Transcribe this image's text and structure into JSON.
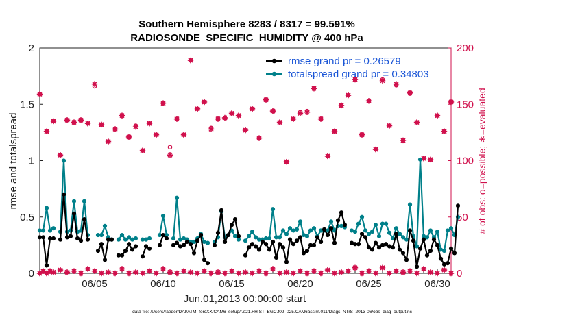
{
  "chart_data": {
    "type": "line",
    "title": "Southern Hemisphere 8283 / 8317 = 99.591%",
    "subtitle": "RADIOSONDE_SPECIFIC_HUMIDITY @ 400 hPa",
    "xlabel": "Jun.01,2013 00:00:00 start",
    "ylabel": "rmse and totalspread",
    "y2label": "# of obs: o=possible; ∗=evaluated",
    "footer": "data file: /Users/raeder/DAI/ATM_forcXX/CAM6_setup/f.e21.FHIST_BGC.f09_025.CAM6assim.011/Diags_NTrS_2013-06/obs_diag_output.nc",
    "xlim": [
      1,
      31
    ],
    "ylim": [
      0,
      2
    ],
    "y2lim": [
      0,
      200
    ],
    "x_ticks": [
      5,
      10,
      15,
      20,
      25,
      30
    ],
    "x_tick_labels": [
      "06/05",
      "06/10",
      "06/15",
      "06/20",
      "06/25",
      "06/30"
    ],
    "y_ticks": [
      "0",
      "0.5",
      "1",
      "1.5",
      "2"
    ],
    "y2_ticks": [
      "0",
      "50",
      "100",
      "150",
      "200"
    ],
    "legend_position": "top-right",
    "colors": {
      "rmse": "#000000",
      "spread": "#00808a",
      "obs": "#d0104c"
    },
    "series": [
      {
        "name": "rmse",
        "legend": "rmse grand pr = 0.26579",
        "pattern": "segments",
        "values": [
          0.32,
          0.32,
          0.07,
          0.31,
          0.31,
          null,
          0.3,
          0.7,
          0.32,
          0.33,
          0.53,
          0.31,
          0.29,
          0.48,
          0.3,
          null,
          null,
          0.2,
          0.26,
          0.12,
          0.3,
          0.3,
          null,
          0.16,
          0.16,
          0.2,
          0.26,
          0.21,
          0.24,
          null,
          0.15,
          0.24,
          0.22,
          null,
          null,
          0.25,
          0.34,
          0.31,
          null,
          0.25,
          0.27,
          0.24,
          0.25,
          0.28,
          0.26,
          0.18,
          0.29,
          0.34,
          0.12,
          0.09,
          null,
          0.25,
          0.36,
          0.56,
          0.28,
          0.34,
          0.43,
          0.48,
          0.33,
          null,
          0.16,
          0.23,
          0.26,
          0.24,
          0.21,
          0.28,
          0.26,
          0.21,
          0.28,
          0.14,
          0.26,
          0.23,
          0.1,
          0.3,
          0.26,
          0.29,
          0.32,
          0.18,
          0.2,
          0.25,
          0.25,
          0.32,
          0.28,
          0.39,
          0.34,
          0.4,
          0.27,
          0.47,
          0.54,
          0.43,
          null,
          0.27,
          0.26,
          0.26,
          0.35,
          0.32,
          0.23,
          0.21,
          0.27,
          0.23,
          0.25,
          0.26,
          0.24,
          0.23,
          0.35,
          0.21,
          0.18,
          0.12,
          0.38,
          0.29,
          0.06,
          0.22,
          0.3,
          0.16,
          0.2,
          0.3,
          0.25,
          0.13,
          0.08,
          0.09,
          0.22,
          0.18,
          0.6
        ],
        "x0": 1.0,
        "dx": 0.25
      },
      {
        "name": "totalspread",
        "legend": "totalspread grand pr = 0.34803",
        "pattern": "segments",
        "values": [
          0.38,
          0.38,
          0.58,
          0.38,
          0.4,
          null,
          0.37,
          1.0,
          0.37,
          0.38,
          0.64,
          0.37,
          0.38,
          0.64,
          0.34,
          null,
          null,
          0.34,
          0.34,
          0.42,
          0.32,
          0.3,
          null,
          0.3,
          0.34,
          0.3,
          0.32,
          0.3,
          0.31,
          null,
          0.3,
          0.3,
          0.31,
          null,
          null,
          0.34,
          0.51,
          0.34,
          null,
          0.31,
          0.67,
          0.3,
          0.31,
          0.3,
          0.28,
          0.28,
          0.31,
          0.35,
          0.28,
          0.27,
          null,
          0.28,
          0.32,
          0.55,
          0.32,
          0.34,
          0.38,
          0.33,
          0.3,
          null,
          0.29,
          0.33,
          0.37,
          0.32,
          0.3,
          0.3,
          0.31,
          0.31,
          0.57,
          0.32,
          0.32,
          0.38,
          0.35,
          0.4,
          0.38,
          0.39,
          0.46,
          0.34,
          0.33,
          0.38,
          0.4,
          0.33,
          0.38,
          0.38,
          0.38,
          0.46,
          0.38,
          0.42,
          0.42,
          0.41,
          null,
          0.38,
          0.37,
          0.44,
          0.5,
          0.38,
          0.35,
          0.37,
          0.43,
          0.33,
          0.44,
          0.44,
          0.36,
          0.31,
          0.4,
          0.35,
          0.32,
          0.3,
          0.61,
          0.33,
          0.24,
          1.01,
          0.33,
          0.32,
          0.38,
          0.32,
          0.37,
          0.21,
          0.2,
          0.38,
          0.4,
          0.34,
          0.5
        ],
        "x0": 1.0,
        "dx": 0.25
      },
      {
        "name": "obs_possible",
        "axis": "right",
        "marker": "o",
        "points": [
          [
            1.0,
            159
          ],
          [
            1.5,
            126
          ],
          [
            2.0,
            135
          ],
          [
            2.5,
            105
          ],
          [
            3.0,
            136
          ],
          [
            3.5,
            134
          ],
          [
            4.0,
            136
          ],
          [
            4.5,
            133
          ],
          [
            5.0,
            166
          ],
          [
            5.5,
            132
          ],
          [
            6.0,
            117
          ],
          [
            6.5,
            128
          ],
          [
            7.0,
            140
          ],
          [
            7.5,
            121
          ],
          [
            8.0,
            131
          ],
          [
            8.5,
            109
          ],
          [
            9.0,
            133
          ],
          [
            9.5,
            123
          ],
          [
            10.0,
            151
          ],
          [
            10.5,
            112
          ],
          [
            11.0,
            137
          ],
          [
            11.5,
            123
          ],
          [
            12.0,
            189
          ],
          [
            12.5,
            146
          ],
          [
            13.0,
            152
          ],
          [
            13.5,
            129
          ],
          [
            14.0,
            137
          ],
          [
            14.5,
            138
          ],
          [
            15.0,
            142
          ],
          [
            15.5,
            140
          ],
          [
            16.0,
            127
          ],
          [
            16.5,
            146
          ],
          [
            17.0,
            120
          ],
          [
            17.5,
            154
          ],
          [
            18.0,
            144
          ],
          [
            18.5,
            134
          ],
          [
            19.0,
            99
          ],
          [
            19.5,
            137
          ],
          [
            20.0,
            143
          ],
          [
            20.5,
            144
          ],
          [
            21.0,
            164
          ],
          [
            21.5,
            137
          ],
          [
            22.0,
            104
          ],
          [
            22.5,
            126
          ],
          [
            23.0,
            149
          ],
          [
            23.5,
            158
          ],
          [
            24.0,
            172
          ],
          [
            24.5,
            123
          ],
          [
            25.0,
            153
          ],
          [
            25.5,
            110
          ],
          [
            26.0,
            172
          ],
          [
            26.5,
            131
          ],
          [
            27.0,
            167
          ],
          [
            27.5,
            118
          ],
          [
            28.0,
            160
          ],
          [
            28.5,
            134
          ],
          [
            29.0,
            102
          ],
          [
            29.5,
            101
          ],
          [
            30.0,
            140
          ],
          [
            30.5,
            126
          ],
          [
            31.0,
            152
          ]
        ]
      },
      {
        "name": "obs_evaluated",
        "axis": "right",
        "marker": "*",
        "points": [
          [
            1.0,
            159
          ],
          [
            1.5,
            126
          ],
          [
            2.0,
            135
          ],
          [
            2.5,
            105
          ],
          [
            3.0,
            136
          ],
          [
            3.5,
            134
          ],
          [
            4.0,
            136
          ],
          [
            4.5,
            133
          ],
          [
            5.0,
            168
          ],
          [
            5.5,
            132
          ],
          [
            6.0,
            117
          ],
          [
            6.5,
            128
          ],
          [
            7.0,
            140
          ],
          [
            7.5,
            121
          ],
          [
            8.0,
            130
          ],
          [
            8.5,
            109
          ],
          [
            9.0,
            133
          ],
          [
            9.5,
            123
          ],
          [
            10.0,
            151
          ],
          [
            10.5,
            105
          ],
          [
            11.0,
            137
          ],
          [
            11.5,
            123
          ],
          [
            12.0,
            189
          ],
          [
            12.5,
            146
          ],
          [
            13.0,
            152
          ],
          [
            13.5,
            128
          ],
          [
            14.0,
            137
          ],
          [
            14.5,
            138
          ],
          [
            15.0,
            142
          ],
          [
            15.5,
            140
          ],
          [
            16.0,
            127
          ],
          [
            16.5,
            146
          ],
          [
            17.0,
            120
          ],
          [
            17.5,
            154
          ],
          [
            18.0,
            144
          ],
          [
            18.5,
            134
          ],
          [
            19.0,
            99
          ],
          [
            19.5,
            137
          ],
          [
            20.0,
            142
          ],
          [
            20.5,
            143
          ],
          [
            21.0,
            164
          ],
          [
            21.5,
            137
          ],
          [
            22.0,
            104
          ],
          [
            22.5,
            126
          ],
          [
            23.0,
            149
          ],
          [
            23.5,
            158
          ],
          [
            24.0,
            172
          ],
          [
            24.5,
            123
          ],
          [
            25.0,
            153
          ],
          [
            25.5,
            110
          ],
          [
            26.0,
            171
          ],
          [
            26.5,
            131
          ],
          [
            27.0,
            168
          ],
          [
            27.5,
            118
          ],
          [
            28.0,
            160
          ],
          [
            28.5,
            134
          ],
          [
            29.0,
            102
          ],
          [
            29.5,
            101
          ],
          [
            30.0,
            140
          ],
          [
            30.5,
            126
          ],
          [
            31.0,
            152
          ]
        ]
      },
      {
        "name": "obs_low_counts",
        "axis": "right",
        "marker": "*",
        "points": [
          [
            1.0,
            0
          ],
          [
            1.25,
            2
          ],
          [
            1.5,
            0
          ],
          [
            1.75,
            2
          ],
          [
            2.0,
            1
          ],
          [
            2.5,
            3
          ],
          [
            3.0,
            1
          ],
          [
            3.5,
            2
          ],
          [
            4.0,
            0
          ],
          [
            4.5,
            4
          ],
          [
            5.0,
            2
          ],
          [
            5.5,
            0
          ],
          [
            6.0,
            1
          ],
          [
            6.5,
            0
          ],
          [
            7.0,
            4
          ],
          [
            7.5,
            0
          ],
          [
            8.0,
            1
          ],
          [
            8.5,
            0
          ],
          [
            9.0,
            2
          ],
          [
            9.5,
            0
          ],
          [
            10.0,
            4
          ],
          [
            10.5,
            1
          ],
          [
            11.0,
            0
          ],
          [
            11.5,
            2
          ],
          [
            12.0,
            1
          ],
          [
            12.5,
            0
          ],
          [
            13.0,
            2
          ],
          [
            13.5,
            0
          ],
          [
            14.0,
            1
          ],
          [
            14.5,
            0
          ],
          [
            15.0,
            2
          ],
          [
            15.5,
            0
          ],
          [
            16.0,
            1
          ],
          [
            16.5,
            0
          ],
          [
            17.0,
            2
          ],
          [
            17.5,
            0
          ],
          [
            18.0,
            4
          ],
          [
            18.5,
            0
          ],
          [
            19.0,
            1
          ],
          [
            19.5,
            0
          ],
          [
            20.0,
            2
          ],
          [
            20.5,
            0
          ],
          [
            21.0,
            2
          ],
          [
            21.5,
            0
          ],
          [
            22.0,
            3
          ],
          [
            22.5,
            0
          ],
          [
            23.0,
            1
          ],
          [
            23.5,
            2
          ],
          [
            24.0,
            5
          ],
          [
            24.5,
            0
          ],
          [
            25.0,
            2
          ],
          [
            25.5,
            0
          ],
          [
            26.0,
            5
          ],
          [
            26.5,
            0
          ],
          [
            27.0,
            2
          ],
          [
            27.5,
            1
          ],
          [
            28.0,
            2
          ],
          [
            28.5,
            0
          ],
          [
            29.0,
            4
          ],
          [
            29.5,
            1
          ],
          [
            30.0,
            0
          ],
          [
            30.5,
            3
          ],
          [
            31.0,
            0
          ]
        ]
      }
    ]
  }
}
